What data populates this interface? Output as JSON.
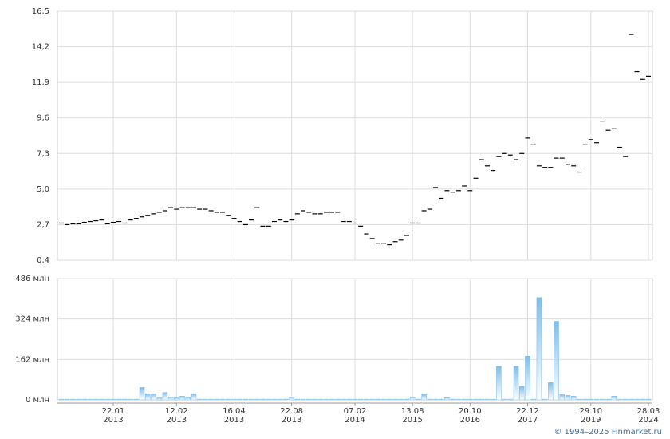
{
  "chart_data": [
    {
      "type": "scatter",
      "color": "#000000",
      "ylim": [
        0.4,
        16.5
      ],
      "yticks": [
        {
          "value": 0.4,
          "label": "0,4"
        },
        {
          "value": 2.7,
          "label": "2,7"
        },
        {
          "value": 5.0,
          "label": "5,0"
        },
        {
          "value": 7.3,
          "label": "7,3"
        },
        {
          "value": 9.6,
          "label": "9,6"
        },
        {
          "value": 11.9,
          "label": "11,9"
        },
        {
          "value": 14.2,
          "label": "14,2"
        },
        {
          "value": 16.5,
          "label": "16,5"
        }
      ],
      "grid": true,
      "values": [
        2.8,
        2.7,
        2.75,
        2.75,
        2.85,
        2.9,
        2.95,
        3.0,
        2.75,
        2.85,
        2.9,
        2.8,
        3.0,
        3.1,
        3.2,
        3.3,
        3.4,
        3.5,
        3.6,
        3.8,
        3.7,
        3.8,
        3.8,
        3.8,
        3.7,
        3.7,
        3.6,
        3.5,
        3.5,
        3.3,
        3.1,
        2.9,
        2.7,
        3.0,
        3.8,
        2.6,
        2.6,
        2.9,
        3.0,
        2.9,
        3.0,
        3.4,
        3.6,
        3.5,
        3.4,
        3.4,
        3.5,
        3.5,
        3.5,
        2.9,
        2.9,
        2.8,
        2.6,
        2.1,
        1.8,
        1.5,
        1.5,
        1.4,
        1.6,
        1.7,
        2.0,
        2.8,
        2.8,
        3.6,
        3.7,
        5.1,
        4.4,
        4.9,
        4.8,
        4.9,
        5.2,
        4.9,
        5.7,
        6.9,
        6.5,
        6.2,
        7.1,
        7.3,
        7.2,
        6.9,
        7.3,
        8.3,
        7.9,
        6.5,
        6.4,
        6.4,
        7.0,
        7.0,
        6.6,
        6.5,
        6.1,
        7.9,
        8.2,
        8.0,
        9.4,
        8.8,
        8.9,
        7.7,
        7.1,
        15.0,
        12.6,
        12.1,
        12.3
      ]
    },
    {
      "type": "bar",
      "color": "#7fbde8",
      "ylim": [
        0,
        486
      ],
      "yticks": [
        {
          "value": 0,
          "label": "0 млн"
        },
        {
          "value": 162,
          "label": "162 млн"
        },
        {
          "value": 324,
          "label": "324 млн"
        },
        {
          "value": 486,
          "label": "486 млн"
        }
      ],
      "grid": true,
      "categories": [
        null,
        null,
        null,
        null,
        null,
        null,
        null,
        null,
        null,
        "22.01\n2013",
        null,
        null,
        null,
        null,
        null,
        null,
        null,
        null,
        null,
        null,
        "12.02\n2013",
        null,
        null,
        null,
        null,
        null,
        null,
        null,
        null,
        null,
        "16.04\n2013",
        null,
        null,
        null,
        null,
        null,
        null,
        null,
        null,
        null,
        "22.08\n2013",
        null,
        null,
        null,
        null,
        null,
        null,
        null,
        null,
        null,
        null,
        "07.02\n2014",
        null,
        null,
        null,
        null,
        null,
        null,
        null,
        null,
        null,
        "13.08\n2015",
        null,
        null,
        null,
        null,
        null,
        null,
        null,
        null,
        null,
        "20.10\n2016",
        null,
        null,
        null,
        null,
        null,
        null,
        null,
        null,
        null,
        "22.12\n2017",
        null,
        null,
        null,
        null,
        null,
        null,
        null,
        null,
        null,
        null,
        "29.10\n2019",
        null,
        null,
        null,
        null,
        null,
        null,
        null,
        null,
        null,
        "28.03\n2024"
      ],
      "values": [
        3,
        3,
        3,
        3,
        3,
        3,
        3,
        3,
        3,
        3,
        3,
        3,
        3,
        3,
        50,
        25,
        25,
        8,
        30,
        12,
        8,
        15,
        10,
        25,
        3,
        3,
        3,
        3,
        3,
        3,
        3,
        3,
        3,
        3,
        3,
        3,
        3,
        3,
        3,
        3,
        12,
        3,
        3,
        3,
        3,
        3,
        3,
        3,
        3,
        3,
        3,
        3,
        3,
        3,
        3,
        3,
        3,
        3,
        3,
        3,
        3,
        12,
        3,
        22,
        3,
        3,
        3,
        10,
        3,
        3,
        3,
        3,
        3,
        3,
        3,
        3,
        135,
        3,
        3,
        135,
        55,
        175,
        3,
        410,
        3,
        70,
        315,
        22,
        18,
        15,
        3,
        3,
        3,
        3,
        3,
        3,
        15,
        3,
        3,
        3,
        3,
        3,
        3
      ]
    }
  ],
  "footer": "© 1994–2025 Finmarket.ru"
}
